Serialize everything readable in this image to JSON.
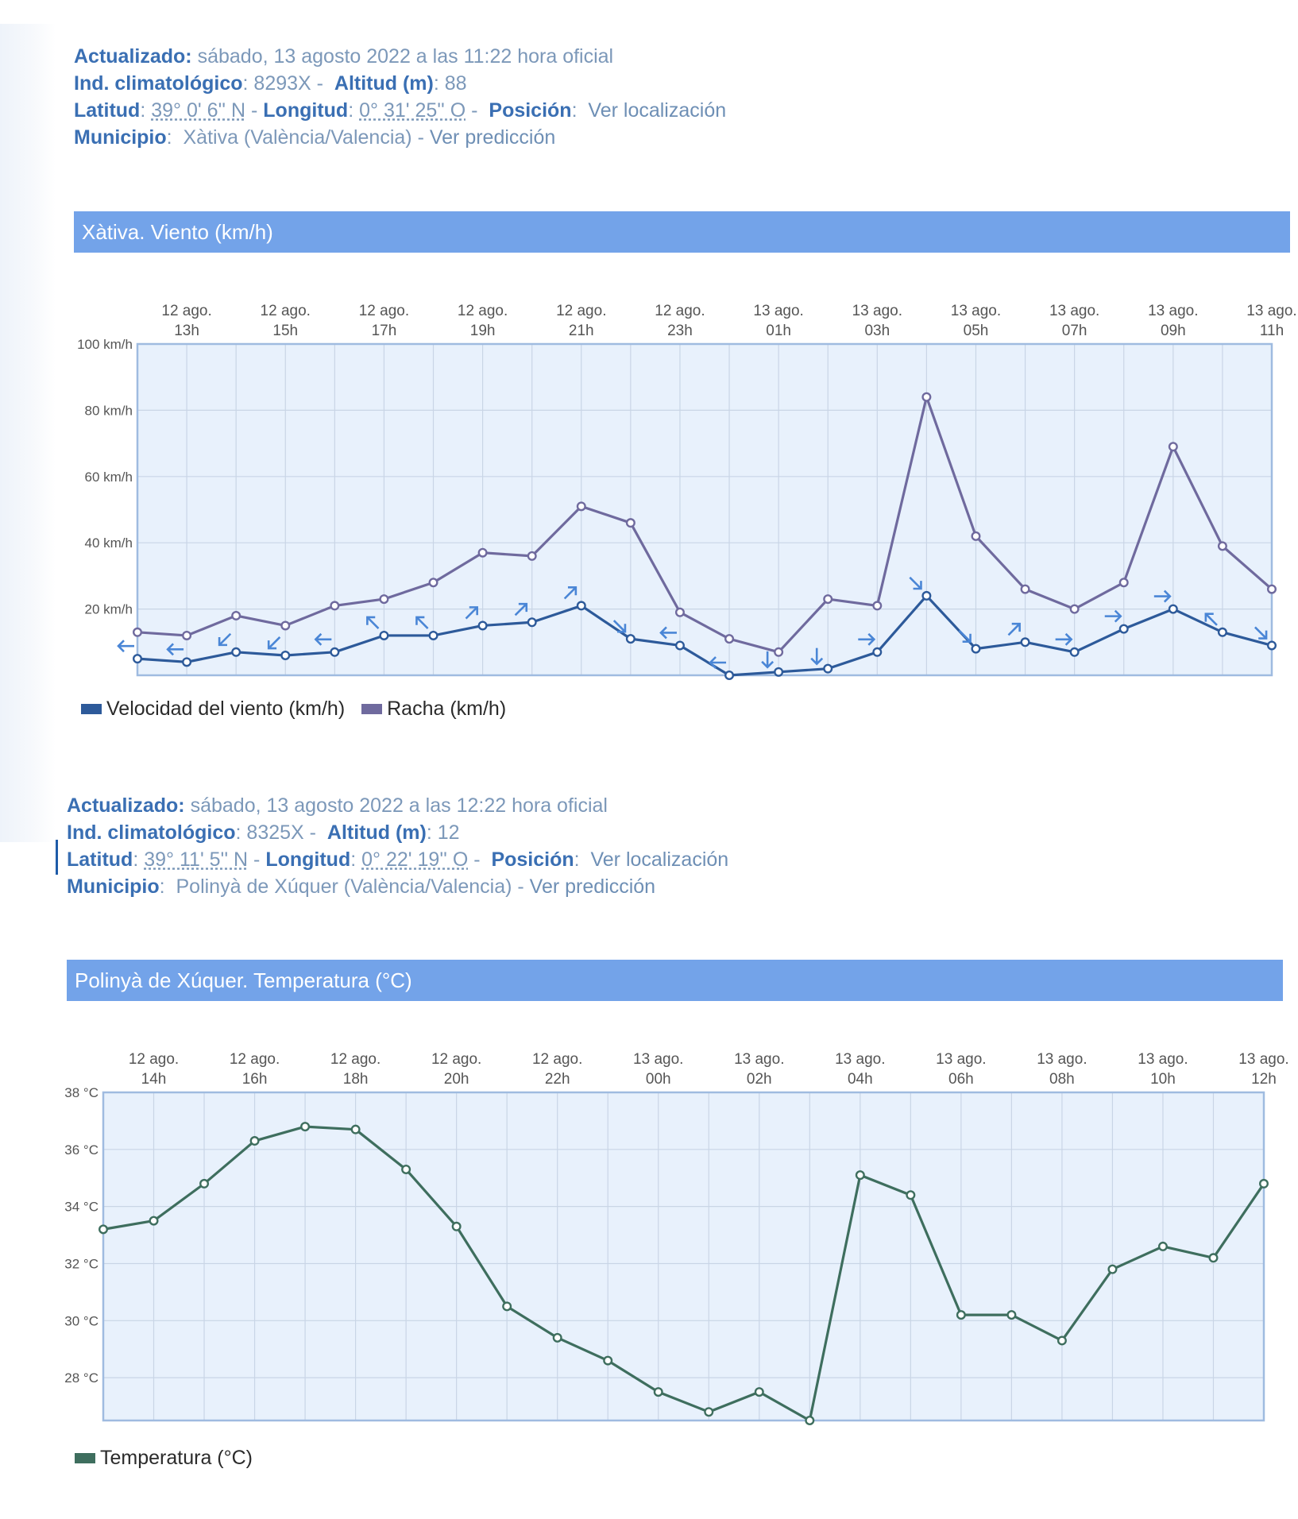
{
  "station1": {
    "updated_label": "Actualizado:",
    "updated_value": "sábado, 13 agosto 2022 a las 11:22 hora oficial",
    "ind_label": "Ind. climatológico",
    "ind_value": "8293X",
    "alt_label": "Altitud (m)",
    "alt_value": "88",
    "lat_label": "Latitud",
    "lat_value": "39° 0' 6'' N",
    "lon_label": "Longitud",
    "lon_value": "0° 31' 25'' O",
    "pos_label": "Posición",
    "pos_link": "Ver localización",
    "mun_label": "Municipio",
    "mun_value": "Xàtiva (València/Valencia)",
    "mun_link": "Ver predicción"
  },
  "station2": {
    "updated_label": "Actualizado:",
    "updated_value": "sábado, 13 agosto 2022 a las 12:22 hora oficial",
    "ind_label": "Ind. climatológico",
    "ind_value": "8325X",
    "alt_label": "Altitud (m)",
    "alt_value": "12",
    "lat_label": "Latitud",
    "lat_value": "39° 11' 5'' N",
    "lon_label": "Longitud",
    "lon_value": "0° 22' 19'' O",
    "pos_label": "Posición",
    "pos_link": "Ver localización",
    "mun_label": "Municipio",
    "mun_value": "Polinyà de Xúquer (València/Valencia)",
    "mun_link": "Ver predicción"
  },
  "colors": {
    "banner": "#73a3e9",
    "plot_bg": "#e8f1fc",
    "wind": "#2d5a9a",
    "gust": "#6f6a9e",
    "arrow": "#4a86d6",
    "temp": "#3e6e5e"
  },
  "chart_data": [
    {
      "type": "line",
      "title": "Xàtiva. Viento (km/h)",
      "ylabel_unit": "km/h",
      "ylim": [
        0,
        100
      ],
      "yticks": [
        20,
        40,
        60,
        80,
        100
      ],
      "tick_labels": [
        [
          "12 ago.",
          "13h"
        ],
        [
          "12 ago.",
          "15h"
        ],
        [
          "12 ago.",
          "17h"
        ],
        [
          "12 ago.",
          "19h"
        ],
        [
          "12 ago.",
          "21h"
        ],
        [
          "12 ago.",
          "23h"
        ],
        [
          "13 ago.",
          "01h"
        ],
        [
          "13 ago.",
          "03h"
        ],
        [
          "13 ago.",
          "05h"
        ],
        [
          "13 ago.",
          "07h"
        ],
        [
          "13 ago.",
          "09h"
        ],
        [
          "13 ago.",
          "11h"
        ]
      ],
      "x": [
        "12 ago. 12h",
        "12 ago. 13h",
        "12 ago. 14h",
        "12 ago. 15h",
        "12 ago. 16h",
        "12 ago. 17h",
        "12 ago. 18h",
        "12 ago. 19h",
        "12 ago. 20h",
        "12 ago. 21h",
        "12 ago. 22h",
        "12 ago. 23h",
        "13 ago. 00h",
        "13 ago. 01h",
        "13 ago. 02h",
        "13 ago. 03h",
        "13 ago. 04h",
        "13 ago. 05h",
        "13 ago. 06h",
        "13 ago. 07h",
        "13 ago. 08h",
        "13 ago. 09h",
        "13 ago. 10h",
        "13 ago. 11h"
      ],
      "series": [
        {
          "name": "Velocidad del viento (km/h)",
          "values": [
            5,
            4,
            7,
            6,
            7,
            12,
            12,
            15,
            16,
            21,
            11,
            9,
            0,
            1,
            2,
            7,
            24,
            8,
            10,
            7,
            14,
            20,
            13,
            9
          ],
          "wind_direction_deg": [
            270,
            270,
            225,
            225,
            270,
            315,
            315,
            45,
            45,
            45,
            135,
            270,
            270,
            180,
            180,
            90,
            135,
            135,
            45,
            90,
            90,
            90,
            315,
            135
          ]
        },
        {
          "name": "Racha (km/h)",
          "values": [
            13,
            12,
            18,
            15,
            21,
            23,
            28,
            37,
            36,
            51,
            46,
            19,
            11,
            7,
            23,
            21,
            84,
            42,
            26,
            20,
            28,
            69,
            39,
            26
          ]
        }
      ],
      "grid": true,
      "legend": "bottom-left"
    },
    {
      "type": "line",
      "title": "Polinyà de Xúquer. Temperatura (°C)",
      "ylabel_unit": "°C",
      "ylim": [
        26.5,
        38
      ],
      "yticks": [
        28,
        30,
        32,
        34,
        36,
        38
      ],
      "tick_labels": [
        [
          "12 ago.",
          "14h"
        ],
        [
          "12 ago.",
          "16h"
        ],
        [
          "12 ago.",
          "18h"
        ],
        [
          "12 ago.",
          "20h"
        ],
        [
          "12 ago.",
          "22h"
        ],
        [
          "13 ago.",
          "00h"
        ],
        [
          "13 ago.",
          "02h"
        ],
        [
          "13 ago.",
          "04h"
        ],
        [
          "13 ago.",
          "06h"
        ],
        [
          "13 ago.",
          "08h"
        ],
        [
          "13 ago.",
          "10h"
        ],
        [
          "13 ago.",
          "12h"
        ]
      ],
      "x": [
        "12 ago. 13h",
        "12 ago. 14h",
        "12 ago. 15h",
        "12 ago. 16h",
        "12 ago. 17h",
        "12 ago. 18h",
        "12 ago. 19h",
        "12 ago. 20h",
        "12 ago. 21h",
        "12 ago. 22h",
        "12 ago. 23h",
        "13 ago. 00h",
        "13 ago. 01h",
        "13 ago. 02h",
        "13 ago. 03h",
        "13 ago. 04h",
        "13 ago. 05h",
        "13 ago. 06h",
        "13 ago. 07h",
        "13 ago. 08h",
        "13 ago. 09h",
        "13 ago. 10h",
        "13 ago. 11h",
        "13 ago. 12h"
      ],
      "series": [
        {
          "name": "Temperatura (°C)",
          "values": [
            33.2,
            33.5,
            34.8,
            36.3,
            36.8,
            36.7,
            35.3,
            33.3,
            30.5,
            29.4,
            28.6,
            27.5,
            26.8,
            27.5,
            26.5,
            35.1,
            34.4,
            30.2,
            30.2,
            29.3,
            31.8,
            32.6,
            32.2,
            34.8
          ]
        }
      ],
      "grid": true,
      "legend": "bottom-left"
    }
  ]
}
